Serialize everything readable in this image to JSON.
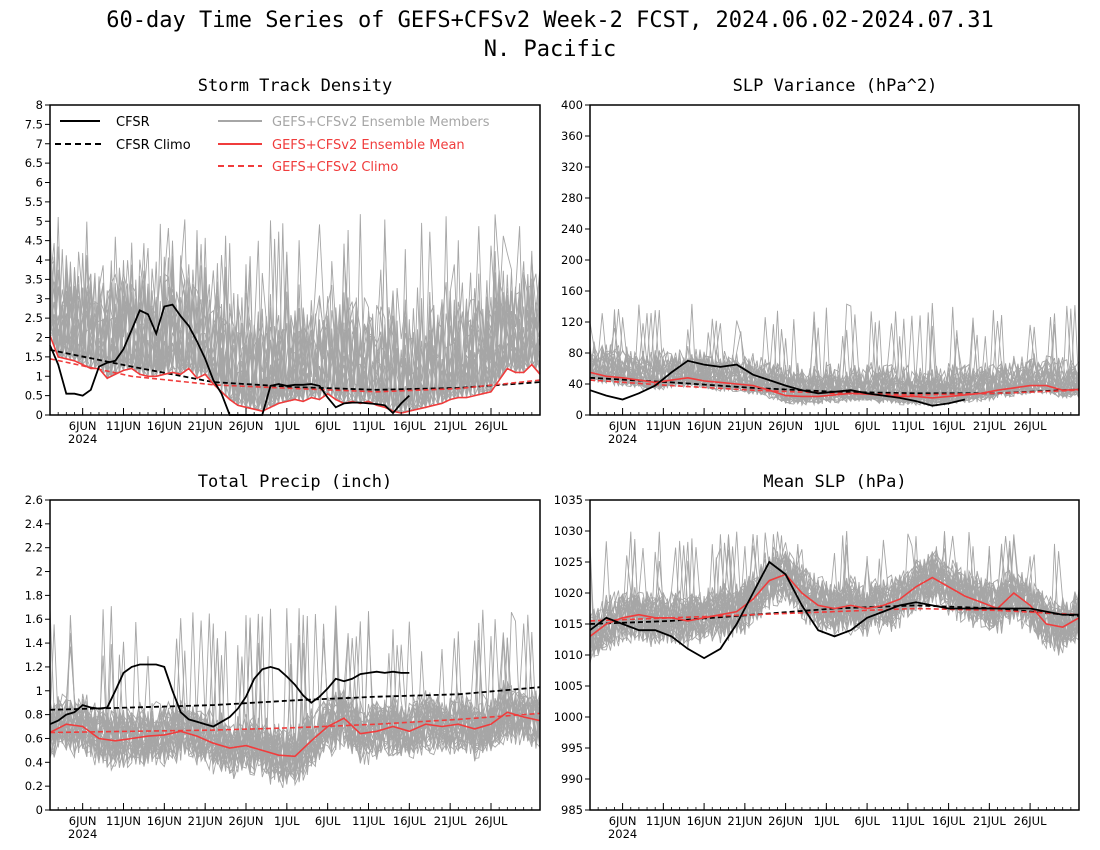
{
  "figure": {
    "title_line1": "60-day Time Series of GEFS+CFSv2 Week-2 FCST, 2024.06.02-2024.07.31",
    "title_line2": "N. Pacific"
  },
  "legend": {
    "cfsr": "CFSR",
    "cfsr_climo": "CFSR Climo",
    "members": "GEFS+CFSv2 Ensemble Members",
    "ens_mean": "GEFS+CFSv2 Ensemble Mean",
    "gefs_climo": "GEFS+CFSv2 Climo"
  },
  "colors": {
    "cfsr": "#000000",
    "members": "#a6a6a6",
    "ens_mean": "#f03c3c",
    "gefs_climo": "#f03c3c",
    "axes": "#000000"
  },
  "x_axis": {
    "days": 60,
    "start_date": "2024-06-02",
    "tick_days": [
      4,
      9,
      14,
      19,
      24,
      29,
      34,
      39,
      44,
      49,
      54
    ],
    "tick_labels": [
      "6JUN",
      "11JUN",
      "16JUN",
      "21JUN",
      "26JUN",
      "1JUL",
      "6JUL",
      "11JUL",
      "16JUL",
      "21JUL",
      "26JUL"
    ],
    "year_label": "2024"
  },
  "chart_data": [
    {
      "id": "storm",
      "type": "line",
      "title": "Storm Track Density",
      "ylim": [
        0,
        8
      ],
      "yticks": [
        0,
        0.5,
        1,
        1.5,
        2,
        2.5,
        3,
        3.5,
        4,
        4.5,
        5,
        5.5,
        6,
        6.5,
        7,
        7.5,
        8
      ],
      "ytick_labels": [
        "0",
        "0.5",
        "1",
        "1.5",
        "2",
        "2.5",
        "3",
        "3.5",
        "4",
        "4.5",
        "5",
        "5.5",
        "6",
        "6.5",
        "7",
        "7.5",
        "8"
      ],
      "legend": true,
      "members": {
        "mean_of": "ens_mean",
        "spread_low": 0,
        "spread_high": 3.2,
        "count": 30,
        "peak": 5.2
      },
      "series": [
        {
          "name": "CFSR",
          "role": "cfsr",
          "x": [
            0,
            1,
            2,
            3,
            4,
            5,
            6,
            7,
            8,
            9,
            10,
            11,
            12,
            13,
            14,
            15,
            16,
            17,
            18,
            19,
            20,
            21,
            22,
            23,
            24,
            25,
            26,
            27,
            28,
            29,
            30,
            31,
            32,
            33,
            34,
            35,
            36,
            37,
            38,
            39,
            40,
            41,
            42,
            43,
            44
          ],
          "y": [
            1.8,
            1.3,
            0.55,
            0.55,
            0.5,
            0.65,
            1.25,
            1.35,
            1.4,
            1.7,
            2.2,
            2.7,
            2.6,
            2.1,
            2.8,
            2.85,
            2.55,
            2.3,
            1.9,
            1.45,
            0.9,
            0.55,
            0.0,
            0.0,
            0.0,
            0.0,
            0.0,
            0.75,
            0.8,
            0.75,
            0.78,
            0.78,
            0.8,
            0.75,
            0.45,
            0.2,
            0.3,
            0.32,
            0.32,
            0.3,
            0.28,
            0.25,
            0.05,
            0.3,
            0.5
          ]
        },
        {
          "name": "CFSR Climo",
          "role": "cfsr_climo",
          "x": [
            0,
            10,
            20,
            30,
            40,
            50,
            60
          ],
          "y": [
            1.68,
            1.25,
            0.85,
            0.72,
            0.65,
            0.7,
            0.85
          ]
        },
        {
          "name": "GEFS+CFSv2 Ensemble Mean",
          "role": "ens_mean",
          "x": [
            0,
            1,
            2,
            3,
            4,
            5,
            6,
            7,
            8,
            9,
            10,
            11,
            12,
            13,
            14,
            15,
            16,
            17,
            18,
            19,
            20,
            21,
            22,
            23,
            24,
            25,
            26,
            27,
            28,
            29,
            30,
            31,
            32,
            33,
            34,
            35,
            36,
            37,
            38,
            39,
            40,
            41,
            42,
            43,
            44,
            45,
            46,
            47,
            48,
            49,
            50,
            51,
            52,
            53,
            54,
            55,
            56,
            57,
            58,
            59,
            60
          ],
          "y": [
            2.05,
            1.5,
            1.45,
            1.4,
            1.3,
            1.2,
            1.2,
            0.95,
            1.05,
            1.15,
            1.2,
            1.05,
            1.0,
            1.0,
            1.05,
            1.1,
            1.05,
            1.2,
            0.95,
            1.05,
            0.8,
            0.6,
            0.4,
            0.25,
            0.2,
            0.15,
            0.1,
            0.2,
            0.3,
            0.35,
            0.4,
            0.35,
            0.45,
            0.4,
            0.55,
            0.4,
            0.3,
            0.35,
            0.3,
            0.35,
            0.25,
            0.2,
            0.1,
            0.05,
            0.1,
            0.15,
            0.2,
            0.25,
            0.3,
            0.4,
            0.45,
            0.45,
            0.5,
            0.55,
            0.6,
            0.9,
            1.2,
            1.1,
            1.1,
            1.3,
            1.05
          ]
        },
        {
          "name": "GEFS+CFSv2 Climo",
          "role": "gefs_climo",
          "x": [
            0,
            10,
            20,
            30,
            40,
            50,
            60
          ],
          "y": [
            1.45,
            1.0,
            0.78,
            0.68,
            0.6,
            0.68,
            0.9
          ]
        }
      ]
    },
    {
      "id": "slpvar",
      "type": "line",
      "title": "SLP Variance (hPa^2)",
      "ylim": [
        0,
        400
      ],
      "yticks": [
        0,
        40,
        80,
        120,
        160,
        200,
        240,
        280,
        320,
        360,
        400
      ],
      "ytick_labels": [
        "0",
        "40",
        "80",
        "120",
        "160",
        "200",
        "240",
        "280",
        "320",
        "360",
        "400"
      ],
      "legend": false,
      "members": {
        "mean_of": "ens_mean",
        "spread_low": 12,
        "spread_high": 45,
        "count": 30,
        "peak": 145
      },
      "series": [
        {
          "name": "CFSR",
          "role": "cfsr",
          "x": [
            0,
            2,
            4,
            6,
            8,
            10,
            12,
            14,
            16,
            18,
            20,
            22,
            24,
            26,
            28,
            30,
            32,
            34,
            36,
            38,
            40,
            42,
            44,
            46
          ],
          "y": [
            32,
            25,
            20,
            28,
            38,
            55,
            70,
            65,
            62,
            65,
            52,
            45,
            38,
            32,
            28,
            30,
            32,
            28,
            25,
            22,
            18,
            12,
            15,
            20
          ]
        },
        {
          "name": "CFSR Climo",
          "role": "cfsr_climo",
          "x": [
            0,
            10,
            20,
            30,
            40,
            50,
            60
          ],
          "y": [
            48,
            42,
            35,
            30,
            28,
            28,
            33
          ]
        },
        {
          "name": "GEFS+CFSv2 Ensemble Mean",
          "role": "ens_mean",
          "x": [
            0,
            2,
            4,
            6,
            8,
            10,
            12,
            14,
            16,
            18,
            20,
            22,
            24,
            26,
            28,
            30,
            32,
            34,
            36,
            38,
            40,
            42,
            44,
            46,
            48,
            50,
            52,
            54,
            56,
            58,
            60
          ],
          "y": [
            55,
            50,
            48,
            45,
            42,
            45,
            48,
            44,
            42,
            40,
            38,
            32,
            25,
            24,
            24,
            26,
            28,
            27,
            25,
            24,
            24,
            22,
            24,
            26,
            28,
            32,
            35,
            38,
            38,
            32,
            33
          ]
        },
        {
          "name": "GEFS+CFSv2 Climo",
          "role": "gefs_climo",
          "x": [
            0,
            10,
            20,
            30,
            40,
            50,
            60
          ],
          "y": [
            45,
            38,
            32,
            28,
            26,
            28,
            32
          ]
        }
      ]
    },
    {
      "id": "precip",
      "type": "line",
      "title": "Total Precip (inch)",
      "ylim": [
        0,
        2.6
      ],
      "yticks": [
        0,
        0.2,
        0.4,
        0.6,
        0.8,
        1,
        1.2,
        1.4,
        1.6,
        1.8,
        2,
        2.2,
        2.4,
        2.6
      ],
      "ytick_labels": [
        "0",
        "0.2",
        "0.4",
        "0.6",
        "0.8",
        "1",
        "1.2",
        "1.4",
        "1.6",
        "1.8",
        "2",
        "2.2",
        "2.4",
        "2.6"
      ],
      "legend": false,
      "members": {
        "mean_of": "ens_mean",
        "spread_low": 0.28,
        "spread_high": 0.3,
        "count": 30,
        "peak": 1.72
      },
      "series": [
        {
          "name": "CFSR",
          "role": "cfsr",
          "x": [
            0,
            1,
            2,
            3,
            4,
            5,
            6,
            7,
            8,
            9,
            10,
            11,
            12,
            13,
            14,
            15,
            16,
            17,
            18,
            19,
            20,
            21,
            22,
            23,
            24,
            25,
            26,
            27,
            28,
            29,
            30,
            31,
            32,
            33,
            34,
            35,
            36,
            37,
            38,
            39,
            40,
            41,
            42,
            43,
            44
          ],
          "y": [
            0.72,
            0.75,
            0.8,
            0.82,
            0.88,
            0.86,
            0.85,
            0.86,
            1.0,
            1.15,
            1.2,
            1.22,
            1.22,
            1.22,
            1.2,
            1.0,
            0.82,
            0.76,
            0.74,
            0.72,
            0.7,
            0.74,
            0.78,
            0.85,
            0.95,
            1.1,
            1.18,
            1.2,
            1.18,
            1.12,
            1.05,
            0.96,
            0.9,
            0.95,
            1.02,
            1.1,
            1.08,
            1.1,
            1.14,
            1.15,
            1.16,
            1.15,
            1.16,
            1.15,
            1.15
          ]
        },
        {
          "name": "CFSR Climo",
          "role": "cfsr_climo",
          "x": [
            0,
            10,
            20,
            30,
            40,
            50,
            60
          ],
          "y": [
            0.84,
            0.86,
            0.88,
            0.92,
            0.95,
            0.97,
            1.03
          ]
        },
        {
          "name": "GEFS+CFSv2 Ensemble Mean",
          "role": "ens_mean",
          "x": [
            0,
            2,
            4,
            6,
            8,
            10,
            12,
            14,
            16,
            18,
            20,
            22,
            24,
            26,
            28,
            30,
            32,
            34,
            36,
            38,
            40,
            42,
            44,
            46,
            48,
            50,
            52,
            54,
            56,
            58,
            60
          ],
          "y": [
            0.65,
            0.72,
            0.7,
            0.6,
            0.58,
            0.6,
            0.62,
            0.63,
            0.66,
            0.62,
            0.56,
            0.52,
            0.54,
            0.5,
            0.46,
            0.45,
            0.58,
            0.7,
            0.77,
            0.64,
            0.66,
            0.7,
            0.66,
            0.72,
            0.7,
            0.72,
            0.68,
            0.72,
            0.82,
            0.78,
            0.75
          ]
        },
        {
          "name": "GEFS+CFSv2 Climo",
          "role": "gefs_climo",
          "x": [
            0,
            10,
            20,
            30,
            40,
            50,
            60
          ],
          "y": [
            0.65,
            0.66,
            0.67,
            0.69,
            0.72,
            0.76,
            0.81
          ]
        }
      ]
    },
    {
      "id": "mslp",
      "type": "line",
      "title": "Mean SLP (hPa)",
      "ylim": [
        985,
        1035
      ],
      "yticks": [
        985,
        990,
        995,
        1000,
        1005,
        1010,
        1015,
        1020,
        1025,
        1030,
        1035
      ],
      "ytick_labels": [
        "985",
        "990",
        "995",
        "1000",
        "1005",
        "1010",
        "1015",
        "1020",
        "1025",
        "1030",
        "1035"
      ],
      "legend": false,
      "members": {
        "mean_of": "ens_mean",
        "spread_low": 5,
        "spread_high": 5,
        "count": 30,
        "peak": 1030
      },
      "series": [
        {
          "name": "CFSR",
          "role": "cfsr",
          "x": [
            0,
            2,
            4,
            6,
            8,
            10,
            12,
            14,
            16,
            18,
            20,
            22,
            24,
            26,
            28,
            30,
            32,
            34,
            36,
            38,
            40,
            42,
            44,
            46,
            48,
            50,
            52,
            54,
            56,
            58,
            60
          ],
          "y": [
            1014,
            1016,
            1015,
            1014,
            1014,
            1013,
            1011,
            1009.5,
            1011,
            1015,
            1020,
            1025,
            1023,
            1018,
            1014,
            1013,
            1014,
            1016,
            1017,
            1018,
            1018.5,
            1018,
            1017.5,
            1017.5,
            1017.5,
            1017.5,
            1017.5,
            1017.5,
            1017,
            1016.5,
            1016.5
          ]
        },
        {
          "name": "CFSR Climo",
          "role": "cfsr_climo",
          "x": [
            0,
            10,
            20,
            30,
            40,
            50,
            60
          ],
          "y": [
            1015,
            1015.5,
            1016.5,
            1017.5,
            1018,
            1017.5,
            1016.3
          ]
        },
        {
          "name": "GEFS+CFSv2 Ensemble Mean",
          "role": "ens_mean",
          "x": [
            0,
            2,
            4,
            6,
            8,
            10,
            12,
            14,
            16,
            18,
            20,
            22,
            24,
            26,
            28,
            30,
            32,
            34,
            36,
            38,
            40,
            42,
            44,
            46,
            48,
            50,
            52,
            54,
            56,
            58,
            60
          ],
          "y": [
            1013,
            1015,
            1016,
            1016.5,
            1016,
            1016,
            1015.5,
            1016,
            1016.5,
            1017,
            1019,
            1022,
            1023,
            1020,
            1018,
            1017.5,
            1018,
            1017.5,
            1018,
            1019,
            1021,
            1022.5,
            1021,
            1019.5,
            1018.5,
            1017.5,
            1020,
            1018,
            1015,
            1014.5,
            1016
          ]
        },
        {
          "name": "GEFS+CFSv2 Climo",
          "role": "gefs_climo",
          "x": [
            0,
            10,
            20,
            30,
            40,
            50,
            60
          ],
          "y": [
            1015.5,
            1016,
            1016.5,
            1017,
            1017.5,
            1017.2,
            1016.5
          ]
        }
      ]
    }
  ]
}
